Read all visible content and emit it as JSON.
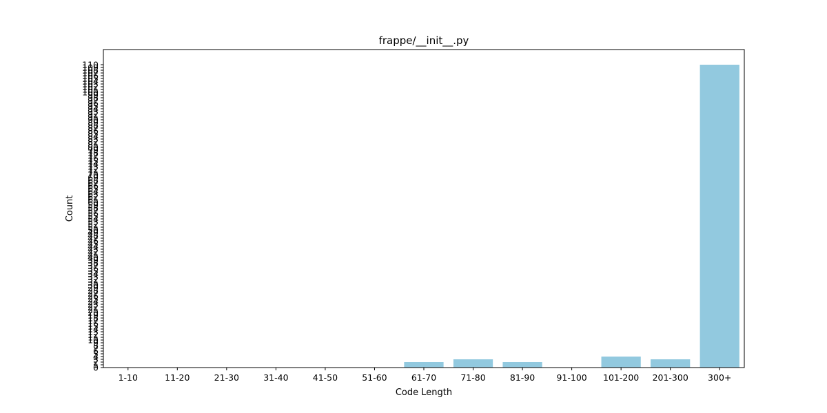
{
  "chart_data": {
    "type": "bar",
    "title": "frappe/__init__.py",
    "xlabel": "Code Length",
    "ylabel": "Count",
    "categories": [
      "1-10",
      "11-20",
      "21-30",
      "31-40",
      "41-50",
      "51-60",
      "61-70",
      "71-80",
      "81-90",
      "91-100",
      "101-200",
      "201-300",
      "300+"
    ],
    "values": [
      0,
      0,
      0,
      0,
      0,
      0,
      2,
      3,
      2,
      0,
      4,
      3,
      110
    ],
    "ylim": [
      0,
      115.5
    ],
    "yticks": [
      0,
      1,
      2,
      3,
      4,
      5,
      6,
      7,
      8,
      9,
      10,
      11,
      12,
      13,
      14,
      15,
      16,
      17,
      18,
      19,
      20,
      21,
      22,
      23,
      24,
      25,
      26,
      27,
      28,
      29,
      30,
      31,
      32,
      33,
      34,
      35,
      36,
      37,
      38,
      39,
      40,
      41,
      42,
      43,
      44,
      45,
      46,
      47,
      48,
      49,
      50,
      51,
      52,
      53,
      54,
      55,
      56,
      57,
      58,
      59,
      60,
      61,
      62,
      63,
      64,
      65,
      66,
      67,
      68,
      69,
      70,
      71,
      72,
      73,
      74,
      75,
      76,
      77,
      78,
      79,
      80,
      81,
      82,
      83,
      84,
      85,
      86,
      87,
      88,
      89,
      90,
      91,
      92,
      93,
      94,
      95,
      96,
      97,
      98,
      99,
      100,
      101,
      102,
      103,
      104,
      105,
      106,
      107,
      108,
      109,
      110
    ],
    "bar_color": "#92c9df",
    "grid": false,
    "legend": "none"
  }
}
